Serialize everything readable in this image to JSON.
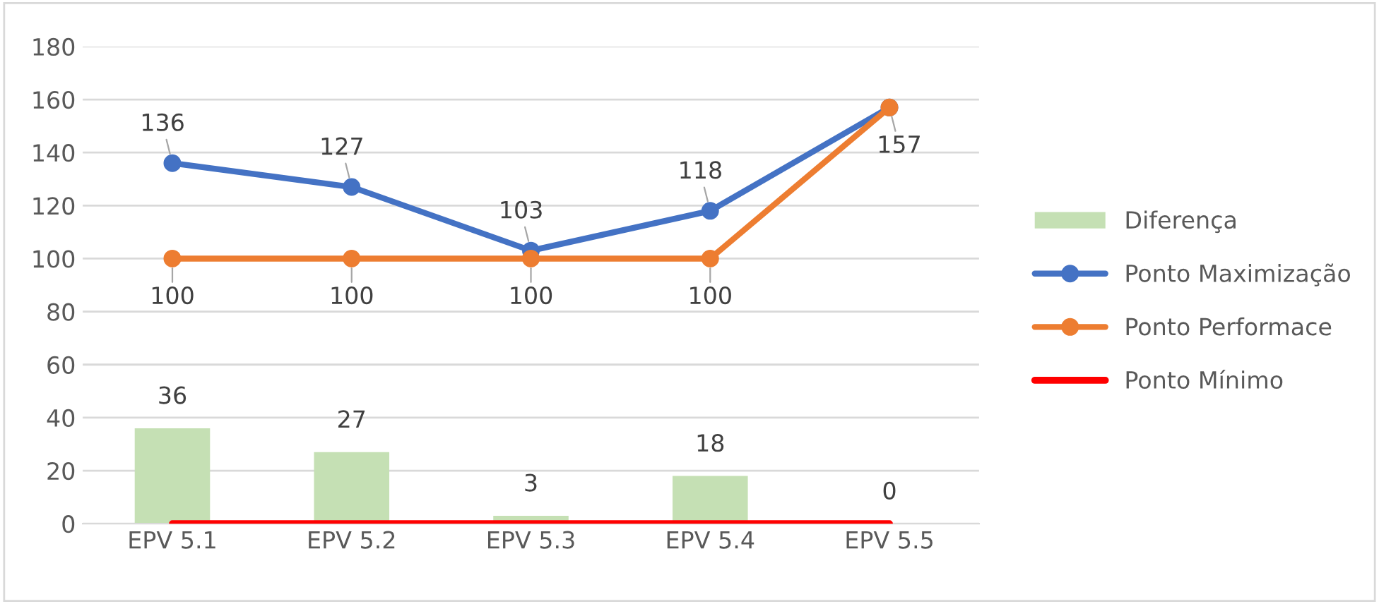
{
  "chart_data": {
    "type": "bar",
    "categories": [
      "EPV 5.1",
      "EPV 5.2",
      "EPV 5.3",
      "EPV 5.4",
      "EPV 5.5"
    ],
    "series": [
      {
        "name": "Diferença",
        "color": "#c5e0b4",
        "values": [
          36,
          27,
          3,
          18,
          0
        ],
        "value_labels": [
          "36",
          "27",
          "3",
          "18",
          "0"
        ]
      },
      {
        "name": "Ponto Maximização",
        "type": "line",
        "color": "#4472c4",
        "marker": "circle",
        "values": [
          136,
          127,
          103,
          118,
          157
        ],
        "value_labels": [
          "136",
          "127",
          "103",
          "118",
          "157"
        ]
      },
      {
        "name": "Ponto Performace",
        "type": "line",
        "color": "#ed7d31",
        "marker": "circle",
        "values": [
          100,
          100,
          100,
          100,
          157
        ],
        "value_labels": [
          "100",
          "100",
          "100",
          "100",
          null
        ]
      },
      {
        "name": "Ponto Mínimo",
        "type": "line",
        "color": "#ff0000",
        "values": [
          0,
          0,
          0,
          0,
          0
        ]
      }
    ],
    "ylim": [
      0,
      180
    ],
    "yticks": [
      0,
      20,
      40,
      60,
      80,
      100,
      120,
      140,
      160,
      180
    ],
    "grid": "y",
    "legend": "right"
  }
}
